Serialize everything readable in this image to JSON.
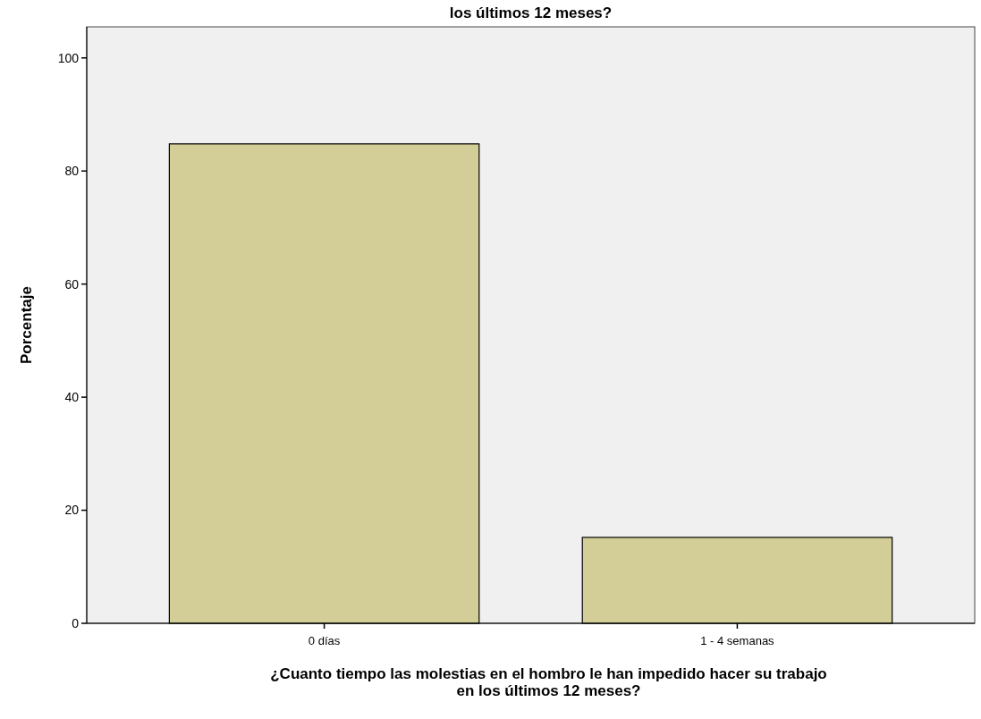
{
  "chart_data": {
    "type": "bar",
    "title": "los últimos 12 meses?",
    "xlabel": "¿Cuanto tiempo las molestias en el hombro le han impedido hacer su trabajo\nen los últimos 12 meses?",
    "ylabel": "Porcentaje",
    "categories": [
      "0 días",
      "1 - 4 semanas"
    ],
    "values": [
      84.8,
      15.2
    ],
    "color": "#d3ce98",
    "ylim": [
      0,
      105.5
    ],
    "yticks": [
      0,
      20,
      40,
      60,
      80,
      100
    ],
    "grid": false
  }
}
